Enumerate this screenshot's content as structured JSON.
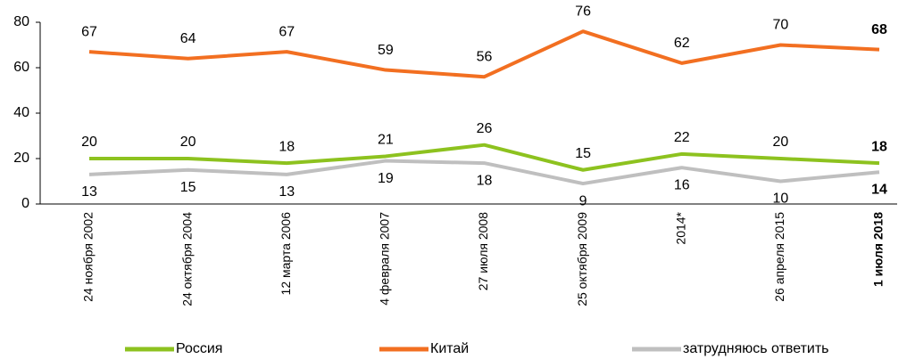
{
  "chart_data": {
    "type": "line",
    "categories": [
      "24 ноября 2002",
      "24 октября 2004",
      "12 марта 2006",
      "4 февраля 2007",
      "27 июля 2008",
      "25 октября 2009",
      "2014*",
      "26 апреля 2015",
      "1 июля 2018"
    ],
    "series": [
      {
        "name": "Россия",
        "color": "#8dc21f",
        "values": [
          20,
          20,
          18,
          21,
          26,
          15,
          22,
          20,
          18
        ]
      },
      {
        "name": "Китай",
        "color": "#f26f21",
        "values": [
          67,
          64,
          67,
          59,
          56,
          76,
          62,
          70,
          68
        ]
      },
      {
        "name": "затрудняюсь ответить",
        "color": "#bfbfbf",
        "values": [
          13,
          15,
          13,
          19,
          18,
          9,
          16,
          10,
          14
        ]
      }
    ],
    "ylim": [
      0,
      80
    ],
    "yticks": [
      0,
      20,
      40,
      60,
      80
    ],
    "grid": false,
    "legend": "bottom"
  }
}
